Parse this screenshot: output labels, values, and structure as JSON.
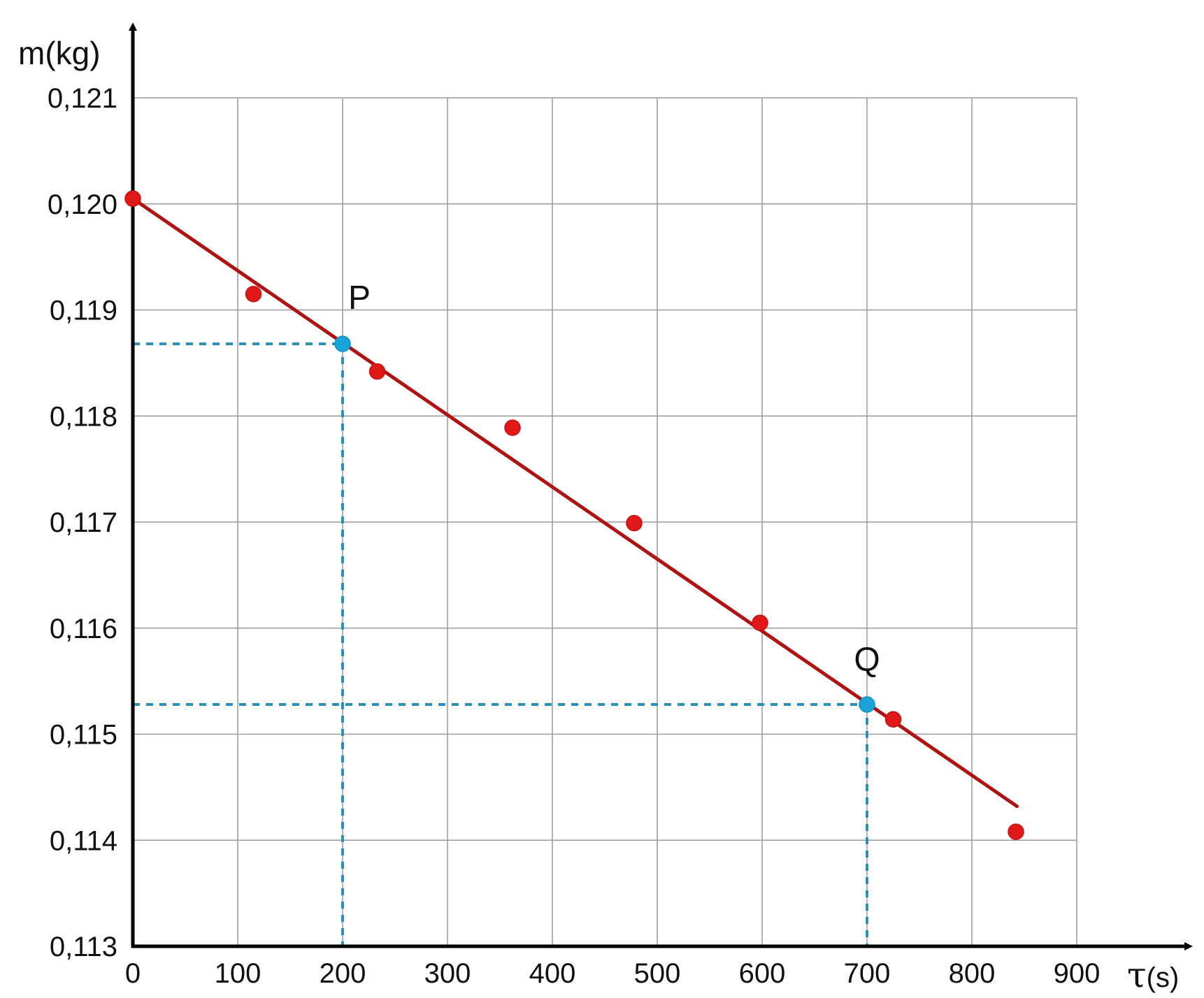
{
  "chart_data": {
    "type": "scatter",
    "ylabel": "m(kg)",
    "xlabel_symbol": "τ",
    "xlabel_unit": "(s)",
    "xlim": [
      0,
      900
    ],
    "ylim": [
      0.113,
      0.121
    ],
    "grid": true,
    "x_ticks": [
      0,
      100,
      200,
      300,
      400,
      500,
      600,
      700,
      800,
      900
    ],
    "x_tick_labels": [
      "0",
      "100",
      "200",
      "300",
      "400",
      "500",
      "600",
      "700",
      "800",
      "900"
    ],
    "y_ticks": [
      0.113,
      0.114,
      0.115,
      0.116,
      0.117,
      0.118,
      0.119,
      0.12,
      0.121
    ],
    "y_tick_labels": [
      "0,113",
      "0,114",
      "0,115",
      "0,116",
      "0,117",
      "0,118",
      "0,119",
      "0,120",
      "0,121"
    ],
    "measurements": [
      {
        "x": 0,
        "y": 0.12005
      },
      {
        "x": 115,
        "y": 0.11915
      },
      {
        "x": 233,
        "y": 0.11842
      },
      {
        "x": 362,
        "y": 0.11789
      },
      {
        "x": 478,
        "y": 0.11699
      },
      {
        "x": 598,
        "y": 0.11605
      },
      {
        "x": 725,
        "y": 0.11514
      },
      {
        "x": 842,
        "y": 0.11408
      }
    ],
    "fit_line": {
      "x": [
        0,
        843
      ],
      "y": [
        0.12005,
        0.11432
      ]
    },
    "highlighted_points": [
      {
        "label": "P",
        "x": 200,
        "y": 0.11868
      },
      {
        "label": "Q",
        "x": 700,
        "y": 0.11528
      }
    ],
    "colors": {
      "measurement": "#e01818",
      "fit_line": "#b01212",
      "highlight": "#1aa3d9",
      "guide": "#2e8fb8",
      "grid": "#9a9a9a",
      "axis": "#000000"
    }
  }
}
